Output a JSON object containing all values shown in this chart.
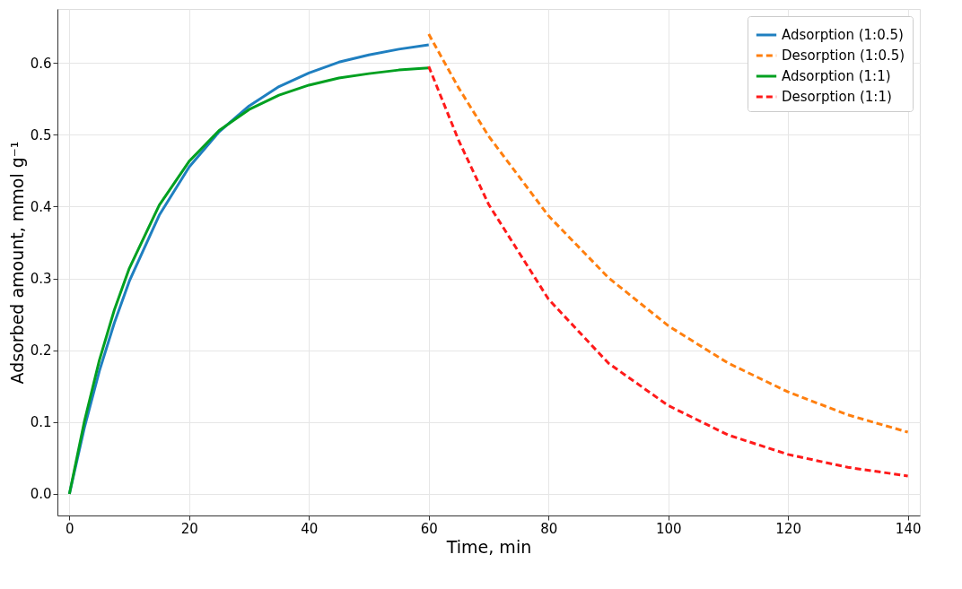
{
  "chart_data": {
    "type": "line",
    "xlabel": "Time, min",
    "ylabel": "Adsorbed amount, mmol g⁻¹",
    "xlim": [
      -2,
      142
    ],
    "ylim": [
      -0.03,
      0.675
    ],
    "xticks": [
      0,
      20,
      40,
      60,
      80,
      100,
      120,
      140
    ],
    "yticks": [
      {
        "value": 0,
        "label": "0.0"
      },
      0.1,
      0.2,
      0.3,
      0.4,
      0.5,
      0.6
    ],
    "grid": true,
    "legend": "top right",
    "marker": "none",
    "series": [
      {
        "name": "Adsorption (1:0.5)",
        "color": "#1f7fc0",
        "line_style": "solid",
        "x": [
          0,
          2.5,
          5,
          7.5,
          10,
          15,
          20,
          25,
          30,
          35,
          40,
          45,
          50,
          55,
          60
        ],
        "values": [
          0,
          0.092,
          0.171,
          0.238,
          0.296,
          0.388,
          0.455,
          0.504,
          0.54,
          0.567,
          0.586,
          0.601,
          0.611,
          0.619,
          0.625
        ]
      },
      {
        "name": "Desorption (1:0.5)",
        "color": "#ff7f0e",
        "line_style": "dashed",
        "x": [
          60,
          65,
          70,
          80,
          90,
          100,
          110,
          120,
          130,
          140
        ],
        "values": [
          0.64,
          0.565,
          0.498,
          0.387,
          0.301,
          0.234,
          0.182,
          0.142,
          0.11,
          0.086
        ]
      },
      {
        "name": "Adsorption (1:1)",
        "color": "#00a020",
        "line_style": "solid",
        "x": [
          0,
          2.5,
          5,
          7.5,
          10,
          15,
          20,
          25,
          30,
          35,
          40,
          45,
          50,
          55,
          60
        ],
        "values": [
          0,
          0.101,
          0.186,
          0.256,
          0.314,
          0.402,
          0.463,
          0.506,
          0.535,
          0.555,
          0.569,
          0.579,
          0.585,
          0.59,
          0.593
        ]
      },
      {
        "name": "Desorption (1:1)",
        "color": "#ff1a1a",
        "line_style": "dashed",
        "x": [
          60,
          65,
          70,
          80,
          90,
          100,
          110,
          120,
          130,
          140
        ],
        "values": [
          0.595,
          0.492,
          0.403,
          0.271,
          0.182,
          0.123,
          0.082,
          0.055,
          0.037,
          0.025
        ]
      }
    ]
  }
}
